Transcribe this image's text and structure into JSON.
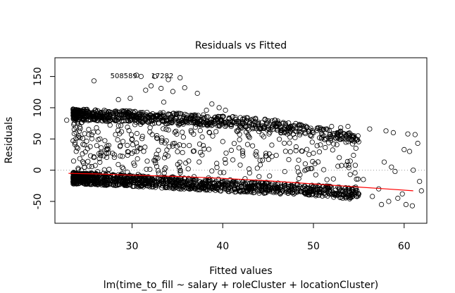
{
  "chart_data": {
    "type": "scatter",
    "title": "Residuals vs Fitted",
    "xlabel": "Fitted values",
    "ylabel": "Residuals",
    "subtitle": "lm(time_to_fill ~ salary + roleCluster + locationCluster)",
    "xlim": [
      21.5,
      62.5
    ],
    "ylim": [
      -85,
      180
    ],
    "x_ticks": [
      30,
      40,
      50,
      60
    ],
    "y_ticks": [
      -50,
      0,
      50,
      100,
      150
    ],
    "grid": false,
    "reference_line": {
      "y": 0,
      "style": "dotted",
      "color": "#999999"
    },
    "smoother": {
      "name": "lowess",
      "color": "#ff0000",
      "x": [
        23,
        26,
        30,
        35,
        40,
        45,
        50,
        55,
        58,
        61
      ],
      "y": [
        -5,
        -6,
        -8,
        -10,
        -13,
        -17,
        -22,
        -27,
        -30,
        -33
      ]
    },
    "points": {
      "marker": "open-circle",
      "color": "#000000",
      "dense_region": {
        "x_range": [
          23.5,
          55
        ],
        "lower_edge": [
          [
            23.5,
            -22
          ],
          [
            30,
            -26
          ],
          [
            40,
            -34
          ],
          [
            50,
            -41
          ],
          [
            54,
            -46
          ]
        ],
        "upper_edge": [
          [
            23.5,
            98
          ],
          [
            30,
            95
          ],
          [
            40,
            87
          ],
          [
            45,
            82
          ],
          [
            50,
            70
          ],
          [
            54,
            60
          ]
        ]
      },
      "outliers": [
        {
          "x": 22.8,
          "y": 80
        },
        {
          "x": 25.8,
          "y": 143
        },
        {
          "x": 28.5,
          "y": 113
        },
        {
          "x": 29.8,
          "y": 115
        },
        {
          "x": 30.5,
          "y": 152
        },
        {
          "x": 31.0,
          "y": 150
        },
        {
          "x": 31.5,
          "y": 128
        },
        {
          "x": 32.1,
          "y": 135
        },
        {
          "x": 32.5,
          "y": 150
        },
        {
          "x": 33.2,
          "y": 131
        },
        {
          "x": 33.5,
          "y": 109
        },
        {
          "x": 34.0,
          "y": 145
        },
        {
          "x": 34.5,
          "y": 126
        },
        {
          "x": 35.3,
          "y": 148
        },
        {
          "x": 35.8,
          "y": 132
        },
        {
          "x": 37.2,
          "y": 123
        },
        {
          "x": 38.2,
          "y": 96
        },
        {
          "x": 38.8,
          "y": 106
        },
        {
          "x": 39.6,
          "y": 100
        },
        {
          "x": 40.3,
          "y": 96
        },
        {
          "x": 52.0,
          "y": 70
        },
        {
          "x": 53.0,
          "y": 68
        },
        {
          "x": 53.8,
          "y": 70
        },
        {
          "x": 55.0,
          "y": -38
        },
        {
          "x": 55.5,
          "y": -15
        },
        {
          "x": 56.2,
          "y": 66
        },
        {
          "x": 56.5,
          "y": -42
        },
        {
          "x": 57.2,
          "y": -30
        },
        {
          "x": 57.5,
          "y": -55
        },
        {
          "x": 57.8,
          "y": 13
        },
        {
          "x": 58.0,
          "y": 63
        },
        {
          "x": 58.3,
          "y": -50
        },
        {
          "x": 58.6,
          "y": 5
        },
        {
          "x": 58.8,
          "y": 60
        },
        {
          "x": 59.0,
          "y": -2
        },
        {
          "x": 59.3,
          "y": -45
        },
        {
          "x": 59.8,
          "y": -38
        },
        {
          "x": 60.0,
          "y": 33
        },
        {
          "x": 60.2,
          "y": -55
        },
        {
          "x": 60.4,
          "y": 58
        },
        {
          "x": 60.6,
          "y": 30
        },
        {
          "x": 60.9,
          "y": -57
        },
        {
          "x": 61.0,
          "y": 0
        },
        {
          "x": 61.2,
          "y": 57
        },
        {
          "x": 61.5,
          "y": 43
        },
        {
          "x": 61.7,
          "y": -18
        },
        {
          "x": 61.9,
          "y": -33
        }
      ],
      "labels": [
        {
          "text": "508589",
          "x": 27.6,
          "y": 152
        },
        {
          "text": "17282",
          "x": 32.1,
          "y": 152
        }
      ]
    }
  }
}
